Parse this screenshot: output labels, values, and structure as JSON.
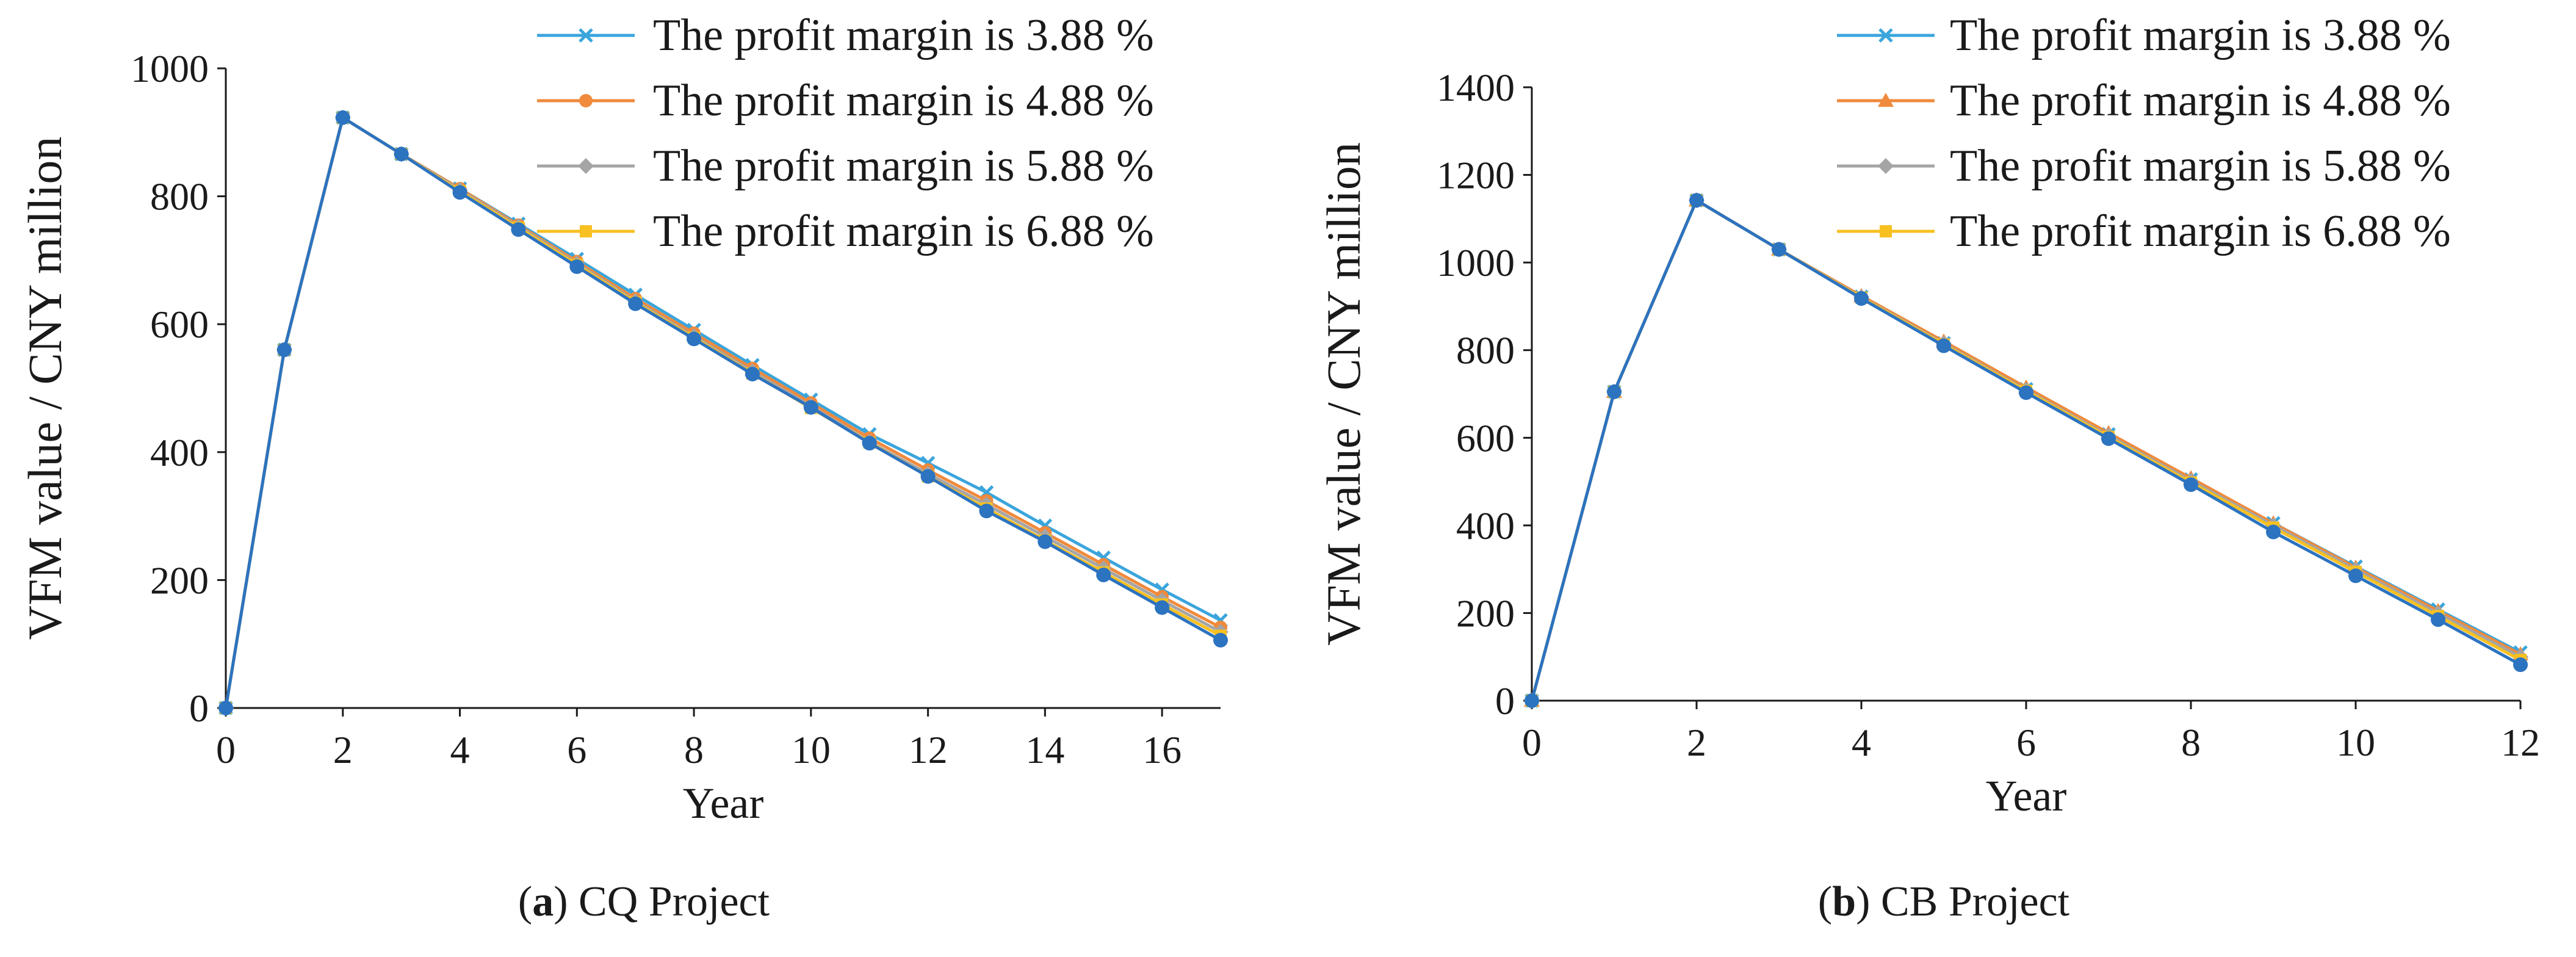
{
  "chart_data": [
    {
      "type": "line",
      "caption_letter": "a",
      "caption_text": "CQ Project",
      "xlabel": "Year",
      "ylabel": "VFM value / CNY million",
      "xlim": [
        0,
        17
      ],
      "ylim": [
        0,
        1000
      ],
      "xticks": [
        0,
        2,
        4,
        6,
        8,
        10,
        12,
        14,
        16
      ],
      "yticks": [
        0,
        200,
        400,
        600,
        800,
        1000
      ],
      "x": [
        0,
        1,
        2,
        3,
        4,
        5,
        6,
        7,
        8,
        9,
        10,
        11,
        12,
        13,
        14,
        15,
        16,
        17
      ],
      "legend_position": "top-right",
      "grid": false,
      "series": [
        {
          "name": "The profit margin is 3.88 %",
          "color": "#3ba5dc",
          "marker": "x",
          "values": [
            0,
            560,
            923,
            866,
            812,
            757,
            702,
            646,
            591,
            536,
            482,
            428,
            383,
            337,
            285,
            235,
            185,
            137
          ]
        },
        {
          "name": "The profit margin is 4.88 %",
          "color": "#f08a3c",
          "marker": "circle",
          "values": [
            0,
            560,
            923,
            866,
            812,
            755,
            698,
            640,
            586,
            531,
            477,
            422,
            372,
            324,
            274,
            224,
            174,
            126
          ]
        },
        {
          "name": "The profit margin is 5.88 %",
          "color": "#a5a5a5",
          "marker": "diamond",
          "values": [
            0,
            560,
            923,
            866,
            810,
            753,
            695,
            636,
            581,
            526,
            472,
            416,
            366,
            318,
            268,
            218,
            168,
            119
          ]
        },
        {
          "name": "The profit margin is 6.88 %",
          "color": "#f8c021",
          "marker": "square",
          "values": [
            0,
            560,
            923,
            866,
            808,
            751,
            693,
            634,
            579,
            523,
            469,
            415,
            362,
            312,
            262,
            212,
            162,
            113
          ]
        },
        {
          "color": "#2c73c0",
          "marker": "dot",
          "values": [
            0,
            560,
            923,
            866,
            806,
            748,
            690,
            632,
            577,
            522,
            470,
            414,
            362,
            308,
            260,
            208,
            157,
            106
          ]
        }
      ]
    },
    {
      "type": "line",
      "caption_letter": "b",
      "caption_text": "CB Project",
      "xlabel": "Year",
      "ylabel": "VFM value / CNY million",
      "xlim": [
        0,
        12
      ],
      "ylim": [
        0,
        1400
      ],
      "xticks": [
        0,
        2,
        4,
        6,
        8,
        10,
        12
      ],
      "yticks": [
        0,
        200,
        400,
        600,
        800,
        1000,
        1200,
        1400
      ],
      "x": [
        0,
        1,
        2,
        3,
        4,
        5,
        6,
        7,
        8,
        9,
        10,
        11,
        12
      ],
      "legend_position": "top-right",
      "grid": false,
      "series": [
        {
          "name": "The profit margin is 3.88 %",
          "color": "#3ba5dc",
          "marker": "x",
          "values": [
            0,
            705,
            1142,
            1030,
            922,
            816,
            711,
            608,
            505,
            405,
            306,
            208,
            110
          ]
        },
        {
          "name": "The profit margin is 4.88 %",
          "color": "#f08a3c",
          "marker": "triangle",
          "values": [
            0,
            705,
            1142,
            1030,
            924,
            820,
            715,
            611,
            508,
            405,
            304,
            205,
            106
          ]
        },
        {
          "name": "The profit margin is 5.88 %",
          "color": "#a5a5a5",
          "marker": "diamond",
          "values": [
            0,
            705,
            1142,
            1030,
            921,
            815,
            709,
            605,
            502,
            400,
            299,
            199,
            100
          ]
        },
        {
          "name": "The profit margin is 6.88 %",
          "color": "#f8c021",
          "marker": "square",
          "values": [
            0,
            705,
            1142,
            1030,
            920,
            813,
            707,
            602,
            498,
            395,
            294,
            193,
            93
          ]
        },
        {
          "color": "#2c73c0",
          "marker": "dot",
          "values": [
            0,
            705,
            1142,
            1030,
            918,
            810,
            703,
            598,
            493,
            385,
            285,
            185,
            82
          ]
        }
      ]
    }
  ]
}
